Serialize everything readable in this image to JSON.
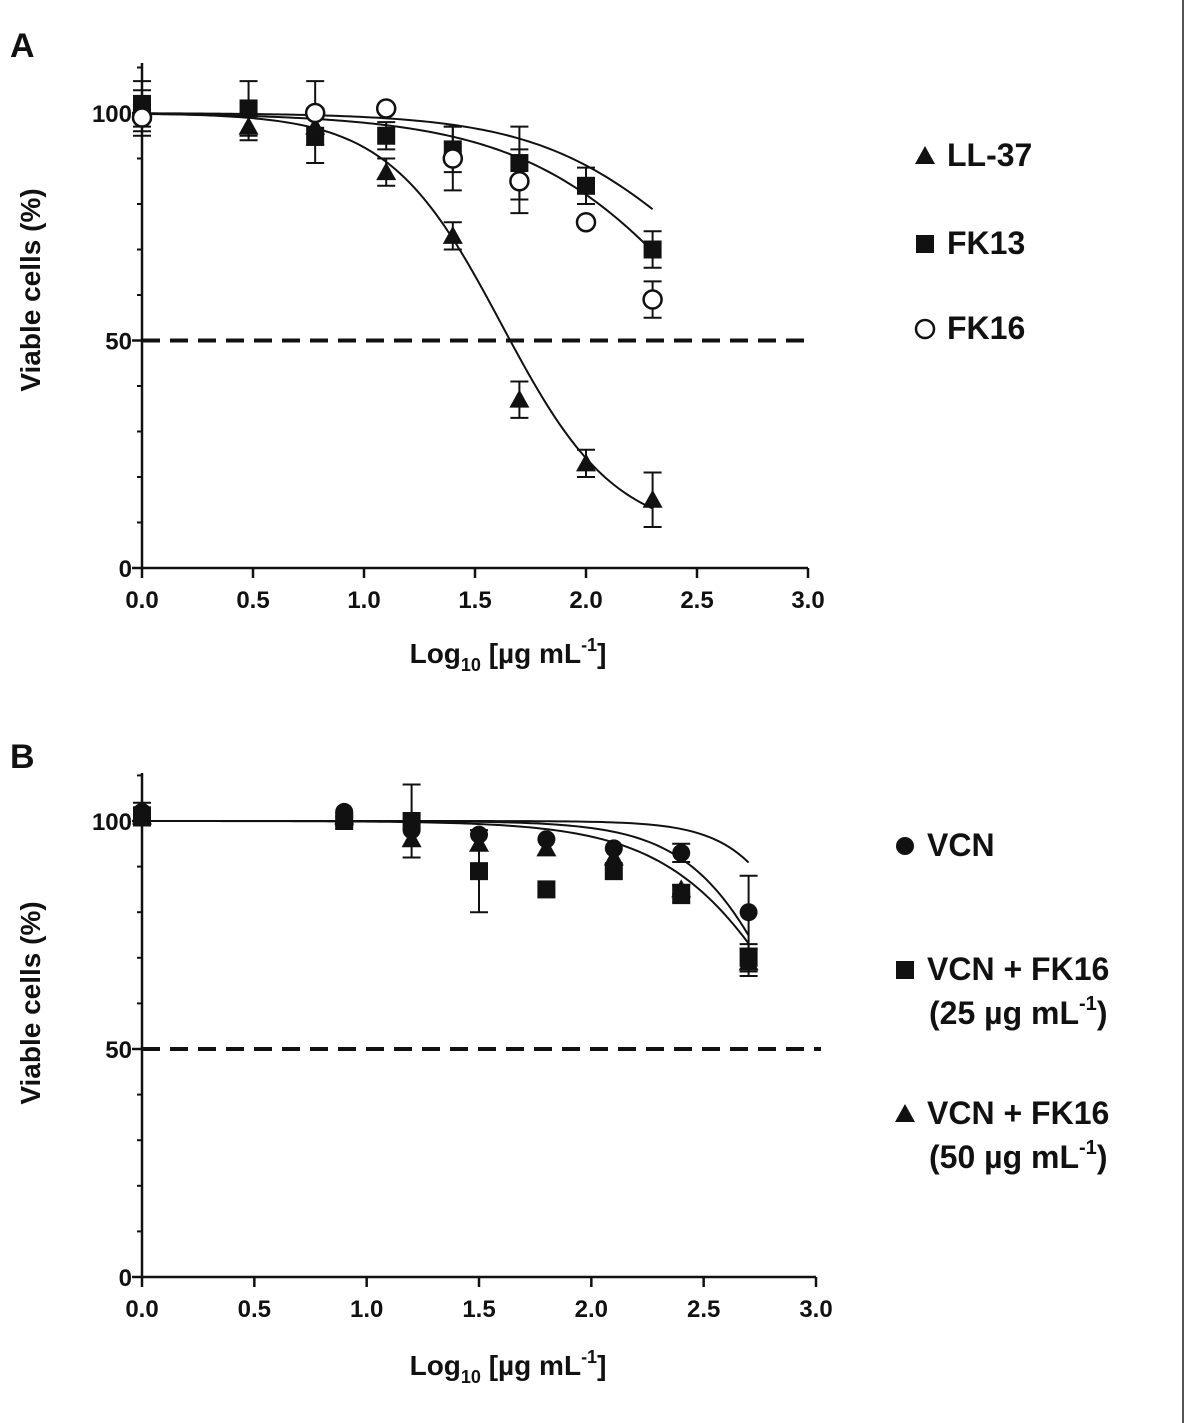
{
  "chart_data": [
    {
      "panel_label": "A",
      "type": "scatter",
      "xlabel": {
        "main": "Log",
        "sub": "10",
        "unit_pre": " [µg mL",
        "sup": "-1",
        "unit_post": "]"
      },
      "ylabel": "Viable cells (%)",
      "xlim": [
        0,
        3
      ],
      "ylim": [
        0,
        110
      ],
      "xticks": [
        "0.0",
        "0.5",
        "1.0",
        "1.5",
        "2.0",
        "2.5",
        "3.0"
      ],
      "yticks": [
        "0",
        "50",
        "100"
      ],
      "reference_line": 50,
      "legend_position": "right",
      "series": [
        {
          "name": "LL-37",
          "marker": "triangle-filled",
          "x": [
            0.0,
            0.48,
            0.78,
            1.1,
            1.4,
            1.7,
            2.0,
            2.3
          ],
          "y": [
            100,
            97,
            97,
            87,
            73,
            37,
            23,
            15
          ],
          "err": [
            5,
            3,
            4,
            3,
            3,
            4,
            3,
            6
          ],
          "fit": {
            "top": 100,
            "bottom": 7,
            "ec50_log": 1.62,
            "hill": 1.7,
            "xmin": 0,
            "xmax": 2.3
          }
        },
        {
          "name": "FK13",
          "marker": "square-filled",
          "x": [
            0.0,
            0.48,
            0.78,
            1.1,
            1.4,
            1.7,
            2.0,
            2.3
          ],
          "y": [
            102,
            101,
            95,
            95,
            92,
            89,
            84,
            70
          ],
          "err": [
            5,
            6,
            6,
            3,
            5,
            8,
            4,
            4
          ],
          "fit": {
            "top": 100,
            "bottom": 40,
            "ec50_log": 2.52,
            "hill": 1.2,
            "xmin": 0,
            "xmax": 2.3
          }
        },
        {
          "name": "FK16",
          "marker": "circle-open",
          "x": [
            0.0,
            0.78,
            1.1,
            1.4,
            1.7,
            2.0,
            2.3
          ],
          "y": [
            99,
            100,
            101,
            90,
            85,
            76,
            59
          ],
          "err": [
            3,
            7,
            0,
            7,
            7,
            0,
            4
          ],
          "fit": {
            "top": 100,
            "bottom": 0,
            "ec50_log": 2.66,
            "hill": 1.0,
            "xmin": 0,
            "xmax": 2.3
          }
        }
      ]
    },
    {
      "panel_label": "B",
      "type": "scatter",
      "xlabel": {
        "main": "Log",
        "sub": "10",
        "unit_pre": " [µg mL",
        "sup": "-1",
        "unit_post": "]"
      },
      "ylabel": "Viable cells (%)",
      "xlim": [
        0,
        3
      ],
      "ylim": [
        0,
        110
      ],
      "xticks": [
        "0.0",
        "0.5",
        "1.0",
        "1.5",
        "2.0",
        "2.5",
        "3.0"
      ],
      "yticks": [
        "0",
        "50",
        "100"
      ],
      "reference_line": 50,
      "legend_position": "right",
      "series": [
        {
          "name": "VCN",
          "marker": "circle-filled",
          "legend_lines": [
            "VCN"
          ],
          "x": [
            0.0,
            0.9,
            1.2,
            1.5,
            1.8,
            2.1,
            2.4,
            2.7
          ],
          "y": [
            102,
            102,
            98,
            97,
            96,
            94,
            93,
            80
          ],
          "err": [
            2,
            0,
            0,
            0,
            0,
            0,
            2,
            8
          ],
          "fit": {
            "top": 100,
            "bottom": 0,
            "ec50_log": 3.1,
            "hill": 2.5,
            "xmin": 0,
            "xmax": 2.7
          }
        },
        {
          "name": "VCN + FK16 (25 µg mL-1)",
          "marker": "square-filled",
          "legend_lines": [
            "VCN + FK16",
            "(25 µg mL",
            "-1",
            ")"
          ],
          "x": [
            0.0,
            0.9,
            1.2,
            1.5,
            1.8,
            2.1,
            2.4,
            2.7
          ],
          "y": [
            101,
            100,
            100,
            89,
            85,
            89,
            84,
            70
          ],
          "err": [
            2,
            1,
            8,
            9,
            0,
            0,
            2,
            3
          ],
          "fit": {
            "top": 100,
            "bottom": 0,
            "ec50_log": 3.0,
            "hill": 1.45,
            "xmin": 0,
            "xmax": 2.7
          }
        },
        {
          "name": "VCN + FK16 (50 µg mL-1)",
          "marker": "triangle-filled",
          "legend_lines": [
            "VCN + FK16",
            "(50 µg mL",
            "-1",
            ")"
          ],
          "x": [
            0.0,
            0.9,
            1.2,
            1.5,
            1.8,
            2.1,
            2.4,
            2.7
          ],
          "y": [
            101,
            101,
            96,
            95,
            94,
            92,
            85,
            69
          ],
          "err": [
            2,
            0,
            0,
            0,
            0,
            0,
            1,
            3
          ],
          "fit": {
            "top": 100,
            "bottom": 0,
            "ec50_log": 2.95,
            "hill": 1.9,
            "xmin": 0,
            "xmax": 2.7
          }
        }
      ]
    }
  ]
}
